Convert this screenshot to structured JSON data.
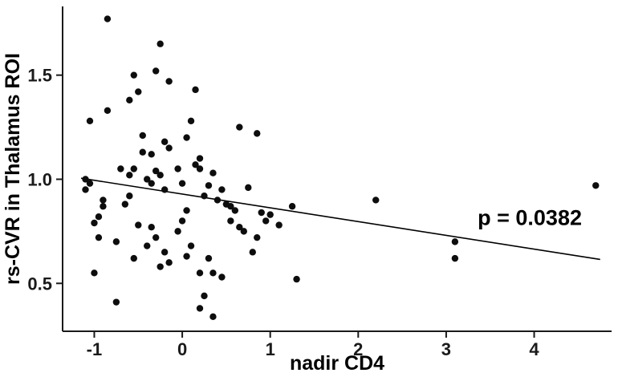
{
  "chart_data": {
    "type": "scatter",
    "title": "",
    "xlabel": "nadir CD4",
    "ylabel": "rs-CVR in Thalamus ROI",
    "xlim": [
      -1.36,
      4.88
    ],
    "ylim": [
      0.27,
      1.83
    ],
    "x_ticks": [
      -1,
      0,
      1,
      2,
      3,
      4
    ],
    "y_ticks": [
      0.5,
      1.0,
      1.5
    ],
    "grid": false,
    "legend": "none",
    "point_color": "#0d0d0d",
    "line_color": "#000000",
    "axis_color": "#1a1a1a",
    "annotation": {
      "text": "p = 0.0382",
      "x": 3.95,
      "y": 0.78
    },
    "regression_line": {
      "x1": -1.15,
      "y1": 1.005,
      "x2": 4.75,
      "y2": 0.615
    },
    "points": [
      [
        -0.85,
        1.77
      ],
      [
        -1.05,
        1.28
      ],
      [
        -0.85,
        1.33
      ],
      [
        -1.1,
        1.0
      ],
      [
        -1.05,
        0.98
      ],
      [
        -1.1,
        0.95
      ],
      [
        -0.9,
        0.87
      ],
      [
        -0.95,
        0.82
      ],
      [
        -1.0,
        0.79
      ],
      [
        -0.95,
        0.72
      ],
      [
        -1.0,
        0.55
      ],
      [
        -0.9,
        0.9
      ],
      [
        -0.55,
        1.5
      ],
      [
        -0.5,
        1.42
      ],
      [
        -0.6,
        1.38
      ],
      [
        -0.45,
        1.21
      ],
      [
        -0.7,
        1.05
      ],
      [
        -0.55,
        1.05
      ],
      [
        -0.45,
        1.13
      ],
      [
        -0.6,
        0.92
      ],
      [
        -0.65,
        0.88
      ],
      [
        -0.5,
        0.78
      ],
      [
        -0.75,
        0.7
      ],
      [
        -0.55,
        0.62
      ],
      [
        -0.75,
        0.41
      ],
      [
        -0.6,
        1.02
      ],
      [
        -0.25,
        1.65
      ],
      [
        -0.3,
        1.52
      ],
      [
        -0.15,
        1.47
      ],
      [
        -0.2,
        1.18
      ],
      [
        -0.15,
        1.15
      ],
      [
        -0.35,
        1.12
      ],
      [
        -0.3,
        1.04
      ],
      [
        -0.25,
        1.02
      ],
      [
        -0.4,
        1.0
      ],
      [
        -0.35,
        0.98
      ],
      [
        -0.2,
        0.95
      ],
      [
        -0.35,
        0.77
      ],
      [
        -0.3,
        0.72
      ],
      [
        -0.4,
        0.68
      ],
      [
        -0.2,
        0.65
      ],
      [
        -0.15,
        0.6
      ],
      [
        -0.25,
        0.58
      ],
      [
        0.15,
        1.43
      ],
      [
        0.1,
        1.28
      ],
      [
        0.05,
        1.2
      ],
      [
        0.2,
        1.1
      ],
      [
        0.15,
        1.07
      ],
      [
        0.2,
        1.05
      ],
      [
        -0.05,
        1.05
      ],
      [
        0.0,
        0.98
      ],
      [
        0.25,
        0.92
      ],
      [
        0.05,
        0.85
      ],
      [
        0.0,
        0.8
      ],
      [
        -0.05,
        0.75
      ],
      [
        0.1,
        0.68
      ],
      [
        0.05,
        0.63
      ],
      [
        0.3,
        0.62
      ],
      [
        0.2,
        0.55
      ],
      [
        0.25,
        0.44
      ],
      [
        0.2,
        0.38
      ],
      [
        0.35,
        0.34
      ],
      [
        0.3,
        0.97
      ],
      [
        0.65,
        1.25
      ],
      [
        0.35,
        1.03
      ],
      [
        0.45,
        0.95
      ],
      [
        0.4,
        0.9
      ],
      [
        0.5,
        0.88
      ],
      [
        0.55,
        0.87
      ],
      [
        0.6,
        0.85
      ],
      [
        0.55,
        0.8
      ],
      [
        0.65,
        0.77
      ],
      [
        0.7,
        0.75
      ],
      [
        0.45,
        0.53
      ],
      [
        0.35,
        0.55
      ],
      [
        0.85,
        1.22
      ],
      [
        0.75,
        0.96
      ],
      [
        0.9,
        0.84
      ],
      [
        1.0,
        0.83
      ],
      [
        0.85,
        0.72
      ],
      [
        0.8,
        0.65
      ],
      [
        1.1,
        0.78
      ],
      [
        1.25,
        0.87
      ],
      [
        1.3,
        0.52
      ],
      [
        0.95,
        0.8
      ],
      [
        2.2,
        0.9
      ],
      [
        3.1,
        0.7
      ],
      [
        3.1,
        0.62
      ],
      [
        4.7,
        0.97
      ]
    ]
  }
}
